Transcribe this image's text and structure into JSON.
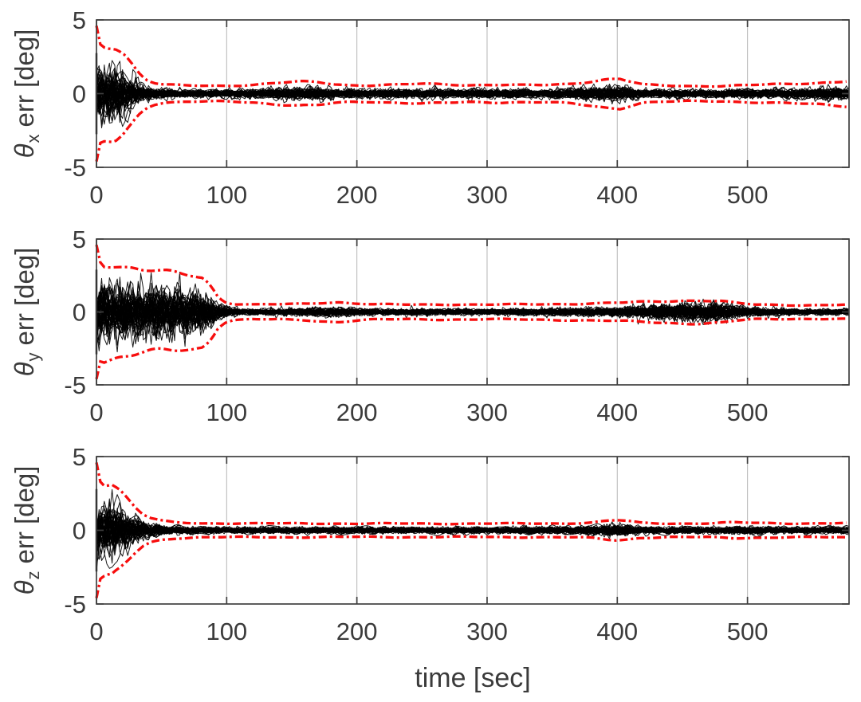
{
  "figure": {
    "description": "Monte Carlo attitude estimation error trajectories with 3-sigma bounds, three stacked subplots",
    "background": "#ffffff",
    "axis_color": "#3f3f3f",
    "tick_label_color": "#3b3b3b",
    "grid_color": "#bcbcbc",
    "ensemble_color": "#000000",
    "bound_color": "#f70d0d",
    "bound_style": "dash-dot",
    "x_label": "time [sec]",
    "x_range": [
      0,
      578
    ],
    "y_range": [
      -5,
      5
    ],
    "x_ticks": [
      0,
      100,
      200,
      300,
      400,
      500
    ],
    "x_tick_labels": [
      "0",
      "100",
      "200",
      "300",
      "400",
      "500"
    ],
    "y_ticks": [
      5,
      0,
      -5
    ],
    "y_tick_labels": [
      "5",
      "0",
      "-5"
    ],
    "grid_x": [
      100,
      200,
      300,
      400,
      500
    ],
    "ensemble_size": 55
  },
  "chart_data": [
    {
      "type": "line",
      "title": "",
      "xlabel": "",
      "ylabel": {
        "symbol": "θ",
        "subscript": "x",
        "rest": "err [deg]"
      },
      "ylabel_text": "theta_x err [deg]",
      "x_range": [
        0,
        578
      ],
      "ylim": [
        -5,
        5
      ],
      "x_ticks": [
        0,
        100,
        200,
        300,
        400,
        500
      ],
      "y_ticks": [
        5,
        0,
        -5
      ],
      "grid": "vertical",
      "legend": "none",
      "series": [
        {
          "name": "3-sigma-bound-upper",
          "color": "#f70d0d",
          "style": "dash-dot",
          "x": [
            0,
            2,
            8,
            14,
            20,
            26,
            32,
            38,
            44,
            52,
            70,
            100,
            120,
            140,
            155,
            170,
            183,
            195,
            210,
            230,
            250,
            268,
            285,
            305,
            325,
            345,
            362,
            378,
            392,
            402,
            410,
            420,
            435,
            455,
            480,
            505,
            530,
            555,
            578
          ],
          "y": [
            4.6,
            3.35,
            3.3,
            3.3,
            2.9,
            2.2,
            1.45,
            0.95,
            0.72,
            0.6,
            0.54,
            0.54,
            0.6,
            0.72,
            0.8,
            0.78,
            0.65,
            0.58,
            0.56,
            0.6,
            0.66,
            0.64,
            0.58,
            0.6,
            0.57,
            0.58,
            0.66,
            0.82,
            0.97,
            1.0,
            0.8,
            0.6,
            0.55,
            0.52,
            0.52,
            0.58,
            0.65,
            0.74,
            0.86
          ]
        },
        {
          "name": "3-sigma-bound-lower",
          "color": "#f70d0d",
          "style": "dash-dot",
          "mirror_of": "3-sigma-bound-upper"
        },
        {
          "name": "monte-carlo-ensemble",
          "color": "#000000",
          "style": "solid",
          "description": "dense bundle of Monte Carlo error trajectories; half-width envelope profile",
          "x": [
            0,
            6,
            12,
            20,
            28,
            36,
            44,
            60,
            90,
            120,
            148,
            165,
            182,
            200,
            230,
            260,
            290,
            320,
            350,
            375,
            395,
            408,
            420,
            450,
            480,
            510,
            540,
            578
          ],
          "halfwidth": [
            2.75,
            2.65,
            2.55,
            2.2,
            1.5,
            0.85,
            0.55,
            0.42,
            0.4,
            0.45,
            0.58,
            0.62,
            0.52,
            0.42,
            0.45,
            0.5,
            0.44,
            0.44,
            0.44,
            0.58,
            0.78,
            0.6,
            0.42,
            0.4,
            0.38,
            0.44,
            0.5,
            0.58
          ]
        }
      ]
    },
    {
      "type": "line",
      "title": "",
      "xlabel": "",
      "ylabel": {
        "symbol": "θ",
        "subscript": "y",
        "rest": "err [deg]"
      },
      "ylabel_text": "theta_y err [deg]",
      "x_range": [
        0,
        578
      ],
      "ylim": [
        -5,
        5
      ],
      "x_ticks": [
        0,
        100,
        200,
        300,
        400,
        500
      ],
      "y_ticks": [
        5,
        0,
        -5
      ],
      "grid": "vertical",
      "legend": "none",
      "series": [
        {
          "name": "3-sigma-bound-upper",
          "color": "#f70d0d",
          "style": "dash-dot",
          "x": [
            0,
            3,
            10,
            20,
            35,
            50,
            65,
            75,
            82,
            88,
            93,
            98,
            105,
            120,
            140,
            160,
            173,
            185,
            197,
            212,
            240,
            270,
            300,
            330,
            360,
            390,
            410,
            430,
            450,
            465,
            480,
            492,
            505,
            530,
            555,
            578
          ],
          "y": [
            4.6,
            3.4,
            3.3,
            3.05,
            2.85,
            2.7,
            2.6,
            2.55,
            2.4,
            1.8,
            1.1,
            0.72,
            0.56,
            0.5,
            0.52,
            0.56,
            0.64,
            0.68,
            0.6,
            0.52,
            0.5,
            0.52,
            0.5,
            0.52,
            0.55,
            0.6,
            0.65,
            0.72,
            0.78,
            0.8,
            0.74,
            0.6,
            0.5,
            0.47,
            0.47,
            0.5
          ]
        },
        {
          "name": "3-sigma-bound-lower",
          "color": "#f70d0d",
          "style": "dash-dot",
          "mirror_of": "3-sigma-bound-upper"
        },
        {
          "name": "monte-carlo-ensemble",
          "color": "#000000",
          "style": "solid",
          "description": "dense bundle of Monte Carlo error trajectories; half-width envelope profile",
          "x": [
            0,
            15,
            30,
            50,
            70,
            80,
            88,
            95,
            102,
            115,
            140,
            163,
            180,
            200,
            230,
            260,
            290,
            320,
            350,
            380,
            405,
            425,
            445,
            462,
            477,
            490,
            502,
            520,
            550,
            578
          ],
          "halfwidth": [
            2.9,
            2.7,
            2.5,
            2.3,
            2.1,
            2.0,
            1.4,
            0.8,
            0.45,
            0.3,
            0.32,
            0.4,
            0.46,
            0.34,
            0.3,
            0.32,
            0.3,
            0.32,
            0.35,
            0.4,
            0.5,
            0.65,
            0.85,
            0.95,
            0.93,
            0.68,
            0.45,
            0.33,
            0.3,
            0.32
          ]
        }
      ]
    },
    {
      "type": "line",
      "title": "",
      "xlabel": "time [sec]",
      "ylabel": {
        "symbol": "θ",
        "subscript": "z",
        "rest": "err [deg]"
      },
      "ylabel_text": "theta_z err [deg]",
      "x_range": [
        0,
        578
      ],
      "ylim": [
        -5,
        5
      ],
      "x_ticks": [
        0,
        100,
        200,
        300,
        400,
        500
      ],
      "y_ticks": [
        5,
        0,
        -5
      ],
      "grid": "vertical",
      "legend": "none",
      "series": [
        {
          "name": "3-sigma-bound-upper",
          "color": "#f70d0d",
          "style": "dash-dot",
          "x": [
            0,
            2,
            8,
            12,
            18,
            24,
            30,
            36,
            42,
            50,
            60,
            80,
            120,
            160,
            200,
            240,
            280,
            320,
            360,
            380,
            392,
            400,
            408,
            418,
            440,
            470,
            490,
            505,
            530,
            555,
            578
          ],
          "y": [
            4.6,
            3.3,
            3.25,
            3.2,
            2.7,
            2.1,
            1.5,
            1.05,
            0.8,
            0.63,
            0.54,
            0.48,
            0.46,
            0.47,
            0.45,
            0.46,
            0.45,
            0.46,
            0.47,
            0.52,
            0.63,
            0.68,
            0.62,
            0.5,
            0.46,
            0.47,
            0.53,
            0.5,
            0.47,
            0.47,
            0.49
          ]
        },
        {
          "name": "3-sigma-bound-lower",
          "color": "#f70d0d",
          "style": "dash-dot",
          "mirror_of": "3-sigma-bound-upper"
        },
        {
          "name": "monte-carlo-ensemble",
          "color": "#000000",
          "style": "solid",
          "description": "dense bundle of Monte Carlo error trajectories; half-width envelope profile",
          "x": [
            0,
            6,
            12,
            20,
            28,
            36,
            44,
            55,
            70,
            100,
            150,
            200,
            250,
            300,
            350,
            375,
            395,
            405,
            418,
            450,
            480,
            500,
            520,
            550,
            578
          ],
          "halfwidth": [
            2.8,
            2.75,
            2.6,
            2.0,
            1.3,
            0.8,
            0.55,
            0.4,
            0.33,
            0.3,
            0.3,
            0.3,
            0.3,
            0.3,
            0.32,
            0.38,
            0.55,
            0.5,
            0.35,
            0.3,
            0.33,
            0.38,
            0.32,
            0.3,
            0.32
          ]
        }
      ]
    }
  ]
}
